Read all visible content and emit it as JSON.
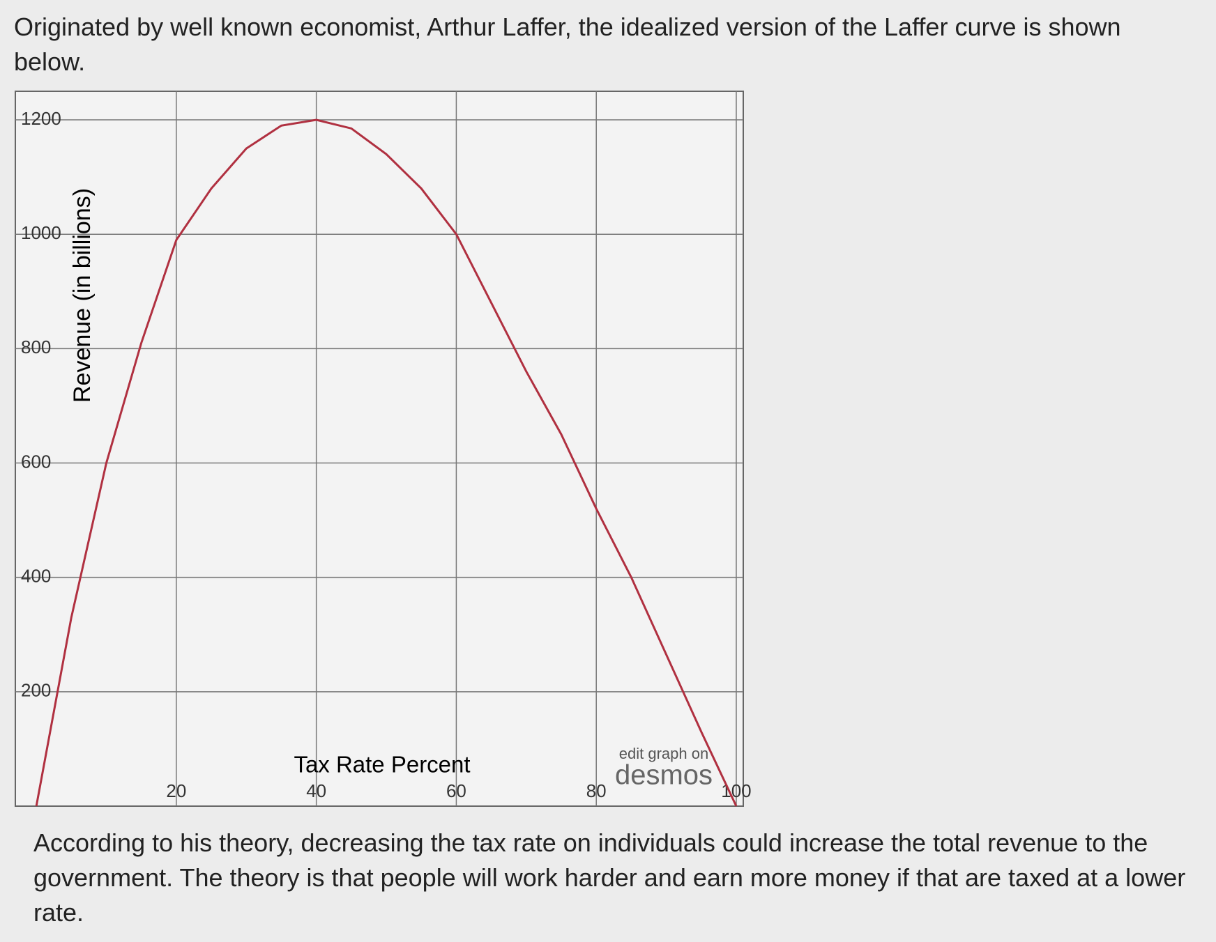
{
  "intro": "Originated by well known economist, Arthur Laffer, the idealized version of the Laffer curve is shown below.",
  "chart_data": {
    "type": "line",
    "xlabel": "Tax Rate Percent",
    "ylabel": "Revenue (in billions)",
    "watermark": [
      "edit graph on",
      "desmos"
    ],
    "x": [
      0,
      5,
      10,
      15,
      20,
      25,
      30,
      35,
      40,
      45,
      50,
      55,
      60,
      65,
      70,
      75,
      80,
      85,
      90,
      95,
      100
    ],
    "series": [
      {
        "color": "#b03040",
        "values": [
          0,
          330,
          600,
          810,
          990,
          1080,
          1150,
          1190,
          1200,
          1185,
          1140,
          1080,
          1000,
          880,
          760,
          650,
          520,
          400,
          265,
          130,
          0
        ]
      }
    ],
    "xlim": [
      -3,
      101
    ],
    "ylim": [
      0,
      1250
    ],
    "xticks": [
      20,
      40,
      60,
      80,
      100
    ],
    "yticks": [
      200,
      400,
      600,
      800,
      1000,
      1200
    ],
    "grid": true
  },
  "outro": "According to his theory, decreasing the tax rate on individuals could increase the total revenue to the government. The theory is that people will work harder and earn more money if that are taxed at a lower rate."
}
